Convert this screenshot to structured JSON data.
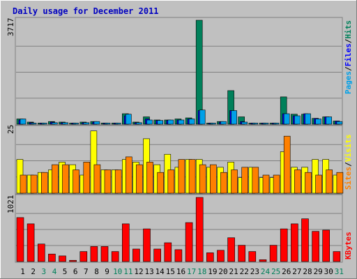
{
  "chart_data": [
    {
      "type": "bar",
      "panel": "hits-files-pages",
      "title": "Daily usage for December 2011",
      "ylabel_max": "3717",
      "ymax": 3717,
      "legend": [
        "Pages",
        "/",
        "Files",
        "/",
        "Hits"
      ],
      "legend_colors": {
        "Pages": "#00a0e8",
        "Files": "#0000ff",
        "Hits": "#00805a",
        "sep": "#000000"
      },
      "series": [
        {
          "name": "Hits",
          "color": "#00805a",
          "values": [
            187,
            75,
            37,
            94,
            75,
            37,
            75,
            94,
            37,
            37,
            375,
            75,
            262,
            150,
            150,
            187,
            225,
            3717,
            37,
            94,
            1200,
            262,
            37,
            37,
            37,
            975,
            356,
            356,
            206,
            262,
            112
          ]
        },
        {
          "name": "Files",
          "color": "#0000ff",
          "values": [
            150,
            56,
            37,
            75,
            56,
            37,
            56,
            75,
            37,
            37,
            300,
            56,
            187,
            131,
            131,
            150,
            187,
            487,
            37,
            75,
            487,
            94,
            37,
            37,
            37,
            375,
            300,
            375,
            206,
            262,
            112
          ]
        },
        {
          "name": "Pages",
          "color": "#00a0e8",
          "values": [
            187,
            37,
            37,
            56,
            56,
            37,
            56,
            94,
            37,
            37,
            356,
            56,
            150,
            131,
            150,
            150,
            187,
            506,
            37,
            94,
            487,
            75,
            37,
            37,
            37,
            375,
            300,
            375,
            187,
            262,
            94
          ]
        }
      ]
    },
    {
      "type": "bar",
      "panel": "visits-sites",
      "ylabel_max": "25",
      "ymax": 25,
      "legend": [
        "Sites",
        "/",
        "Visits"
      ],
      "legend_colors": {
        "Visits": "#ffff00",
        "Sites": "#ff8000",
        "sep": "#000000"
      },
      "series": [
        {
          "name": "Visits",
          "color": "#ffff00",
          "values": [
            13,
            7,
            8,
            9,
            12,
            11,
            7,
            24,
            9,
            9,
            13,
            12,
            21,
            11,
            15,
            10,
            13,
            13,
            10,
            10,
            12,
            6,
            10,
            6,
            6,
            16,
            10,
            10,
            13,
            13,
            7
          ]
        },
        {
          "name": "Sites",
          "color": "#ff8000",
          "values": [
            7,
            7,
            8,
            11,
            11,
            9,
            12,
            11,
            9,
            9,
            14,
            11,
            12,
            8,
            9,
            13,
            13,
            11,
            11,
            8,
            9,
            10,
            10,
            7,
            7,
            22,
            9,
            8,
            7,
            9,
            8
          ]
        }
      ]
    },
    {
      "type": "bar",
      "panel": "kbytes",
      "ylabel_max": "1021",
      "ymax": 1021,
      "legend": [
        "KBytes"
      ],
      "legend_colors": {
        "KBytes": "#ff0000"
      },
      "series": [
        {
          "name": "KBytes",
          "color": "#ff0000",
          "values": [
            700,
            600,
            280,
            120,
            90,
            20,
            160,
            240,
            240,
            160,
            600,
            200,
            520,
            200,
            300,
            190,
            620,
            1021,
            140,
            180,
            380,
            260,
            160,
            30,
            260,
            520,
            600,
            680,
            480,
            500,
            160
          ]
        }
      ]
    }
  ],
  "x_axis": {
    "labels": [
      "1",
      "2",
      "3",
      "4",
      "5",
      "6",
      "7",
      "8",
      "9",
      "10",
      "11",
      "12",
      "13",
      "14",
      "15",
      "16",
      "17",
      "18",
      "19",
      "20",
      "21",
      "22",
      "23",
      "24",
      "25",
      "26",
      "27",
      "28",
      "29",
      "30",
      "31"
    ],
    "weekend_days": [
      3,
      4,
      10,
      11,
      17,
      18,
      24,
      25,
      31
    ],
    "weekday_color": "#000000",
    "weekend_color": "#00805a"
  },
  "colors": {
    "background": "#c0c0c0",
    "title": "#0000c0",
    "plot_bg": "#c0c0c0",
    "grid": "#808080"
  }
}
